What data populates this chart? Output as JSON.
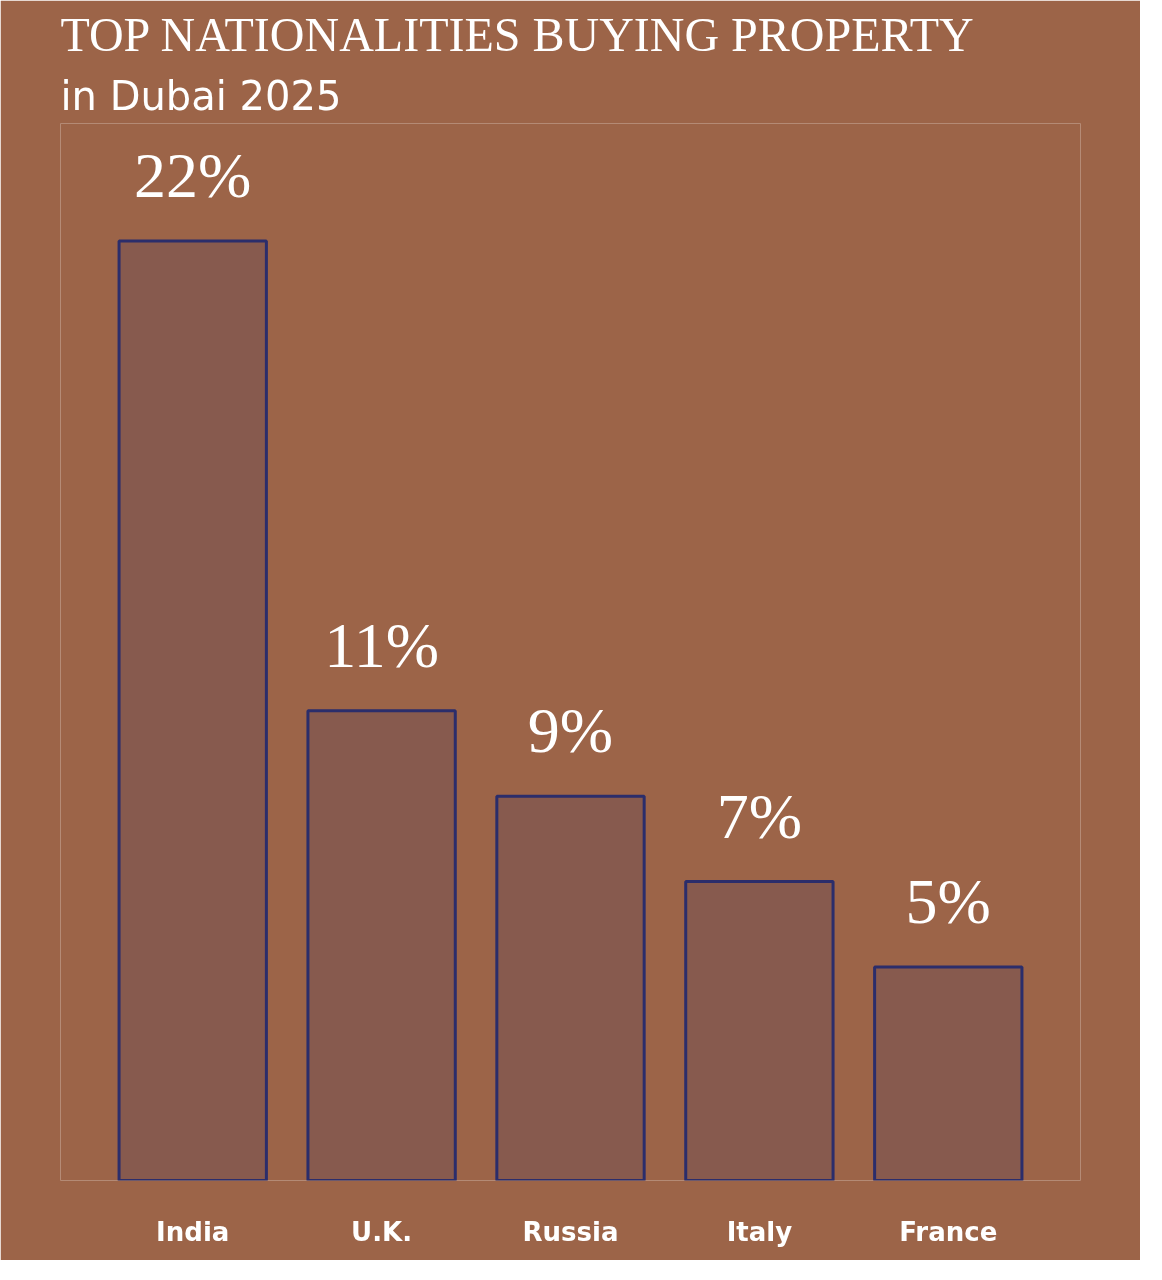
{
  "chart_data": {
    "type": "bar",
    "title": "TOP NATIONALITIES BUYING PROPERTY",
    "subtitle": "in Dubai 2025",
    "categories": [
      "India",
      "U.K.",
      "Russia",
      "Italy",
      "France"
    ],
    "values": [
      22,
      11,
      9,
      7,
      5
    ],
    "value_labels": [
      "22%",
      "11%",
      "9%",
      "7%",
      "5%"
    ],
    "color": "#2b2d6b",
    "grid": false
  }
}
